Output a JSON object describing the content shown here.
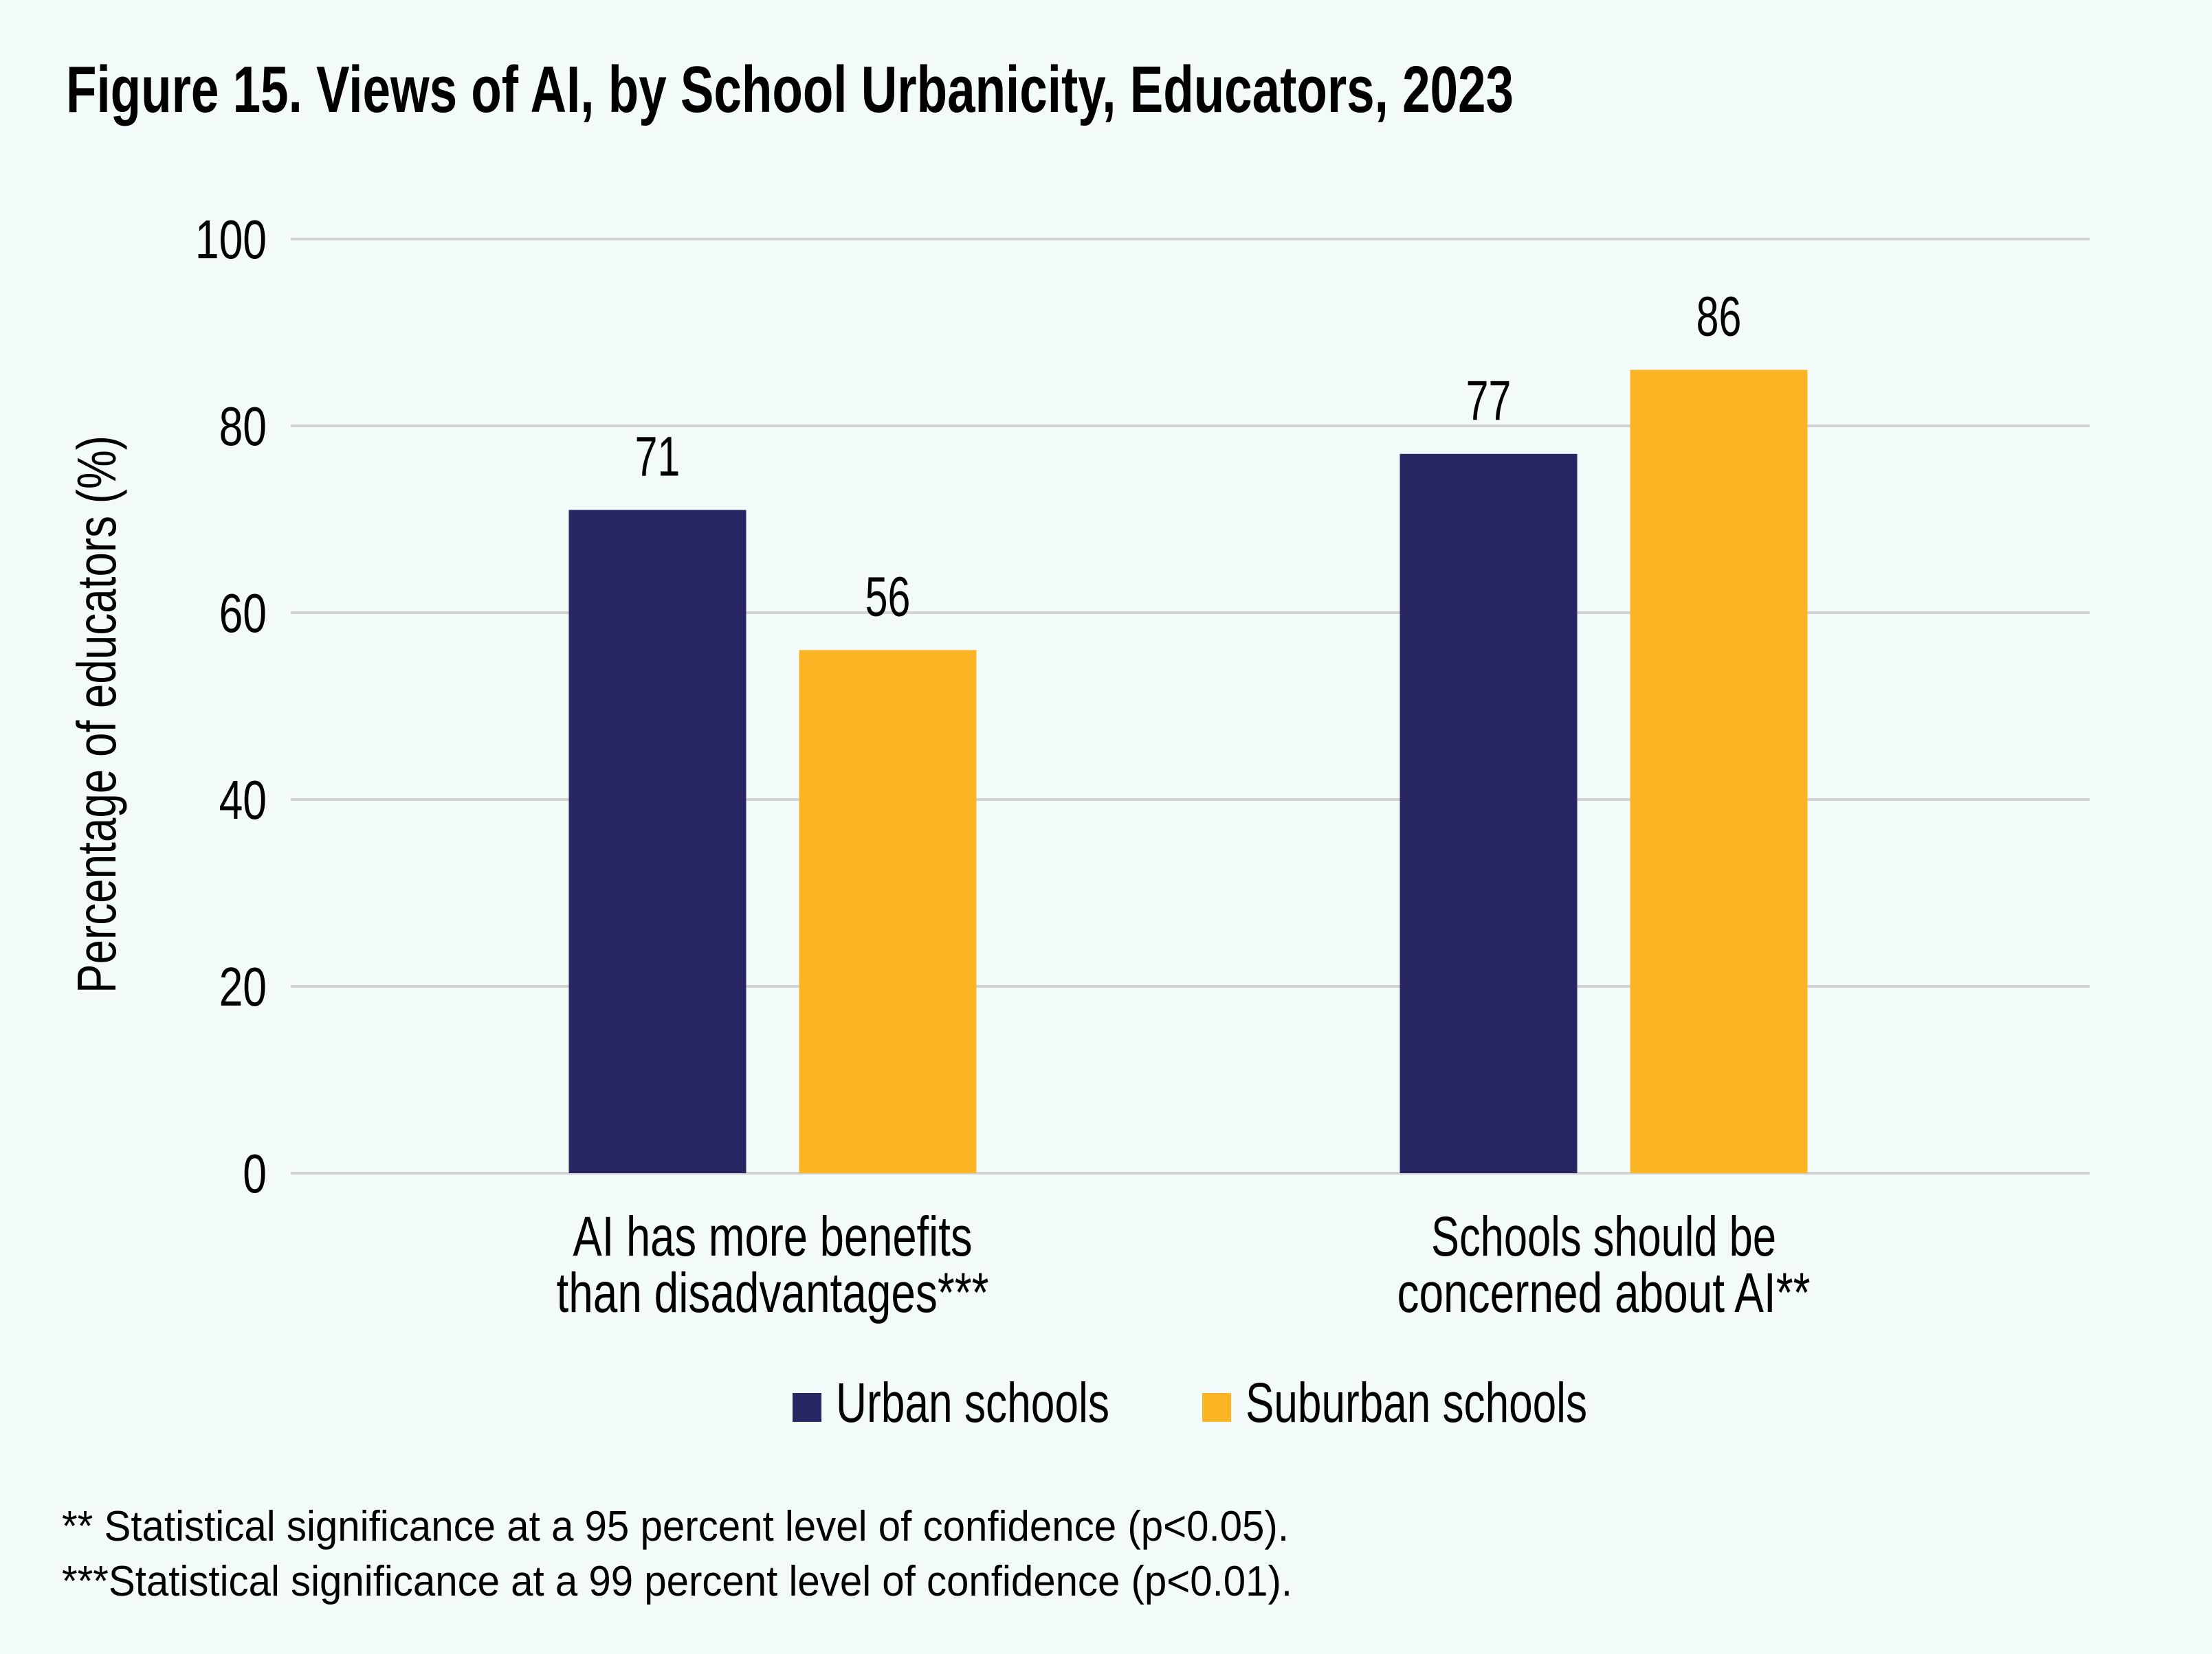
{
  "colors": {
    "background": "#F2FBFA",
    "urban": "#292664",
    "suburban": "#FBB424",
    "gridline": "#D1D3D4",
    "text": "#000000"
  },
  "chart_data": {
    "type": "bar",
    "title": "Figure 15. Views of AI, by School Urbanicity, Educators, 2023",
    "xlabel": "",
    "ylabel": "Percentage of educators (%)",
    "ylim": [
      0,
      100
    ],
    "yticks": [
      0,
      20,
      40,
      60,
      80,
      100
    ],
    "ytick_labels": [
      "0",
      "20",
      "40",
      "60",
      "80",
      "100"
    ],
    "grid": true,
    "legend_position": "bottom-center",
    "categories": [
      [
        "AI has more benefits",
        "than disadvantages***"
      ],
      [
        "Schools should be",
        "concerned about AI**"
      ]
    ],
    "series": [
      {
        "name": "Urban schools",
        "color": "#292664",
        "values": [
          71,
          77
        ],
        "labels": [
          "71",
          "77"
        ]
      },
      {
        "name": "Suburban schools",
        "color": "#FBB424",
        "values": [
          56,
          86
        ],
        "labels": [
          "56",
          "86"
        ]
      }
    ],
    "footnotes": [
      "** Statistical significance at a 95 percent level of confidence (p<0.05).",
      "***Statistical significance at a 99 percent level of confidence (p<0.01)."
    ]
  }
}
